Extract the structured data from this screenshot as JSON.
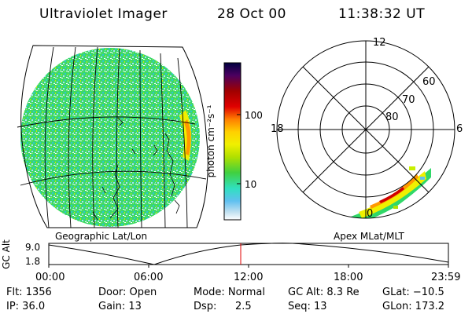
{
  "header": {
    "instrument": "Ultraviolet Imager",
    "date": "28 Oct 00",
    "time": "11:38:32 UT"
  },
  "geo_panel": {
    "label": "Geographic Lat/Lon"
  },
  "apex_panel": {
    "label": "Apex MLat/MLT",
    "mlt_labels": {
      "top": "12",
      "right": "6",
      "left": "18",
      "bottom": "0"
    },
    "lat_labels": [
      "60",
      "70",
      "80"
    ]
  },
  "colorbar": {
    "unit_label": "photon cm⁻²s⁻¹",
    "tick_labels": [
      "100",
      "10"
    ],
    "colors": [
      "#000040",
      "#4b0060",
      "#a00000",
      "#e00000",
      "#ff7f00",
      "#ffd000",
      "#f0f000",
      "#b0e000",
      "#40d040",
      "#30e0c0",
      "#60c0f0",
      "#c0e0f0",
      "#ffffff"
    ]
  },
  "gc_alt_strip": {
    "ylabel": "GC Alt",
    "ytick_top": "9.0",
    "ytick_bottom": "1.8",
    "xtick_labels": [
      "00:00",
      "06:00",
      "12:00",
      "18:00",
      "23:59"
    ],
    "cursor_color": "#e00000"
  },
  "status": {
    "flt": "Flt: 1356",
    "ip": "IP: 36.0",
    "door": "Door: Open",
    "gain": "Gain: 13",
    "mode": "Mode: Normal",
    "dsp_label": "Dsp:",
    "dsp_value": "2.5",
    "gc_alt": "GC Alt: 8.3 Re",
    "seq": "Seq: 13",
    "glat": "GLat: −10.5",
    "glon": "GLon: 173.2"
  }
}
